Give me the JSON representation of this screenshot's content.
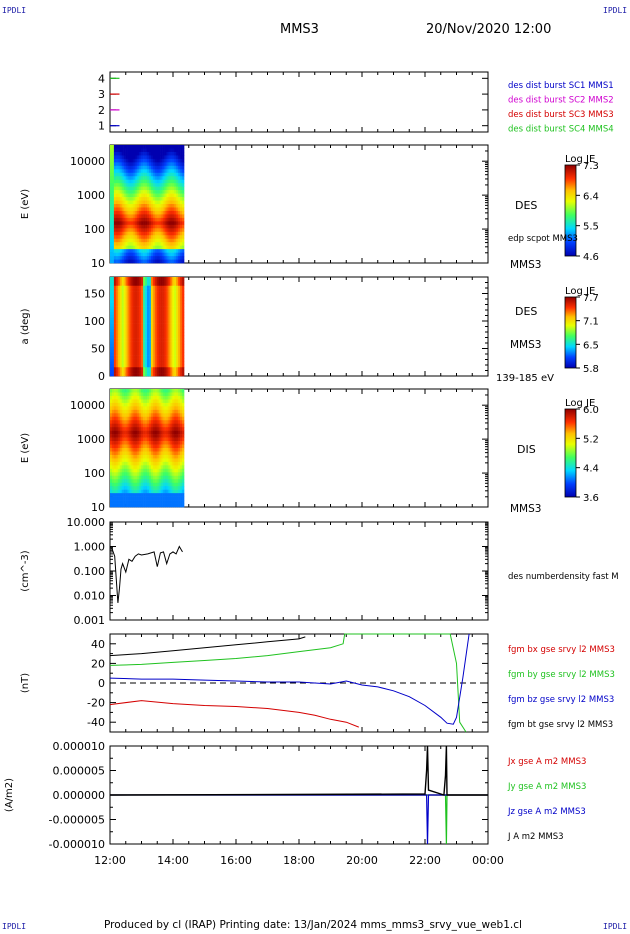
{
  "header": {
    "corner_left": "IPDLI",
    "corner_right": "IPDLI",
    "spacecraft": "MMS3",
    "datetime": "20/Nov/2020 12:00"
  },
  "footer": {
    "text": "Produced by cl (IRAP)   Printing date: 13/Jan/2024   mms_mms3_srvy_vue_web1.cl",
    "corner_left": "IPDLI",
    "corner_right": "IPDLI"
  },
  "x_axis": {
    "tick_labels": [
      "12:00",
      "14:00",
      "16:00",
      "18:00",
      "20:00",
      "22:00",
      "00:00"
    ],
    "tick_hours": [
      12,
      14,
      16,
      18,
      20,
      22,
      24
    ],
    "range_hours": [
      12,
      24
    ]
  },
  "colors": {
    "red": "#d40000",
    "green": "#1fc21f",
    "blue": "#0000c8",
    "magenta": "#d000d0",
    "black": "#000000"
  },
  "panels": {
    "burst": {
      "tick_labels": [
        "1",
        "2",
        "3",
        "4"
      ],
      "legend": [
        {
          "text": "des dist burst SC1 MMS1",
          "color": "#0000c8"
        },
        {
          "text": "des dist burst SC2 MMS2",
          "color": "#d000d0"
        },
        {
          "text": "des dist burst SC3 MMS3",
          "color": "#d40000"
        },
        {
          "text": "des dist burst SC4 MMS4",
          "color": "#1fc21f"
        }
      ]
    },
    "des_energy": {
      "ylabel": "E (eV)",
      "tick_labels": [
        "10",
        "100",
        "1000",
        "10000"
      ],
      "label": "DES",
      "sublabel": "edp scpot MMS3",
      "spacecraft": "MMS3",
      "colorbar": {
        "title": "Log JE",
        "ticks": [
          "7.3",
          "6.4",
          "5.5",
          "4.6"
        ]
      }
    },
    "des_pitch": {
      "ylabel": "a (deg)",
      "tick_labels": [
        "0",
        "50",
        "100",
        "150"
      ],
      "label": "DES",
      "spacecraft": "MMS3",
      "energy_range": "139-185 eV",
      "colorbar": {
        "title": "Log JE",
        "ticks": [
          "7.7",
          "7.1",
          "6.5",
          "5.8"
        ]
      }
    },
    "dis_energy": {
      "ylabel": "E (eV)",
      "tick_labels": [
        "10",
        "100",
        "1000",
        "10000"
      ],
      "label": "DIS",
      "spacecraft": "MMS3",
      "colorbar": {
        "title": "Log JE",
        "ticks": [
          "6.0",
          "5.2",
          "4.4",
          "3.6"
        ]
      }
    },
    "density": {
      "ylabel": "(cm^-3)",
      "tick_labels": [
        "0.001",
        "0.010",
        "0.100",
        "1.000",
        "10.000"
      ],
      "legend": [
        {
          "text": "des numberdensity fast M",
          "color": "#000000"
        }
      ]
    },
    "bfield": {
      "ylabel": "(nT)",
      "tick_labels": [
        "-40",
        "-20",
        "0",
        "20",
        "40"
      ],
      "legend": [
        {
          "text": "fgm bx gse srvy l2 MMS3",
          "color": "#d40000"
        },
        {
          "text": "fgm by gse srvy l2 MMS3",
          "color": "#1fc21f"
        },
        {
          "text": "fgm bz gse srvy l2 MMS3",
          "color": "#0000c8"
        },
        {
          "text": "fgm bt gse srvy l2 MMS3",
          "color": "#000000"
        }
      ]
    },
    "current": {
      "ylabel": "(A/m2)",
      "tick_labels": [
        "-0.000010",
        "-0.000005",
        "0.000000",
        "0.000005",
        "0.000010"
      ],
      "legend": [
        {
          "text": "Jx gse A m2 MMS3",
          "color": "#d40000"
        },
        {
          "text": "Jy gse A m2 MMS3",
          "color": "#1fc21f"
        },
        {
          "text": "Jz gse A m2 MMS3",
          "color": "#0000c8"
        },
        {
          "text": "J A m2 MMS3",
          "color": "#000000"
        }
      ]
    }
  },
  "chart_data": [
    {
      "type": "scatter",
      "title": "burst availability",
      "series": [
        {
          "name": "des dist burst SC1 MMS1",
          "x": [
            12.0,
            12.3
          ],
          "y": [
            1,
            1
          ]
        },
        {
          "name": "des dist burst SC2 MMS2",
          "x": [
            12.0,
            12.3
          ],
          "y": [
            2,
            2
          ]
        },
        {
          "name": "des dist burst SC3 MMS3",
          "x": [
            12.0,
            12.3
          ],
          "y": [
            3,
            3
          ]
        },
        {
          "name": "des dist burst SC4 MMS4",
          "x": [
            12.0,
            12.3
          ],
          "y": [
            4,
            4
          ]
        }
      ],
      "xlim": [
        12,
        24
      ],
      "ylim": [
        0.6,
        4.4
      ]
    },
    {
      "type": "heatmap",
      "ylabel": "E (eV)",
      "yscale": "log",
      "xlim": [
        12,
        24
      ],
      "ylim": [
        10,
        30000
      ],
      "data_x_range": [
        12.0,
        14.35
      ],
      "peak_energy_ev": 150,
      "zlim": [
        4.6,
        7.3
      ]
    },
    {
      "type": "heatmap",
      "ylabel": "a (deg)",
      "xlim": [
        12,
        24
      ],
      "ylim": [
        0,
        180
      ],
      "data_x_range": [
        12.0,
        14.35
      ],
      "energy_range": "139-185 eV",
      "zlim": [
        5.8,
        7.7
      ]
    },
    {
      "type": "heatmap",
      "ylabel": "E (eV)",
      "yscale": "log",
      "xlim": [
        12,
        24
      ],
      "ylim": [
        10,
        30000
      ],
      "data_x_range": [
        12.0,
        14.35
      ],
      "peak_energy_ev": 1500,
      "zlim": [
        3.6,
        6.0
      ]
    },
    {
      "type": "line",
      "ylabel": "(cm^-3)",
      "yscale": "log",
      "xlim": [
        12,
        24
      ],
      "ylim": [
        0.001,
        10
      ],
      "series": [
        {
          "name": "des numberdensity fast M",
          "x": [
            12.05,
            12.15,
            12.25,
            12.3,
            12.35,
            12.4,
            12.5,
            12.6,
            12.7,
            12.8,
            12.9,
            13.0,
            13.2,
            13.4,
            13.5,
            13.6,
            13.7,
            13.8,
            13.9,
            14.0,
            14.1,
            14.2,
            14.3
          ],
          "y": [
            0.9,
            0.4,
            0.005,
            0.02,
            0.12,
            0.2,
            0.09,
            0.3,
            0.25,
            0.4,
            0.5,
            0.45,
            0.5,
            0.6,
            0.15,
            0.55,
            0.6,
            0.2,
            0.5,
            0.6,
            0.5,
            1.0,
            0.6
          ]
        }
      ]
    },
    {
      "type": "line",
      "ylabel": "(nT)",
      "xlim": [
        12,
        24
      ],
      "ylim": [
        -50,
        50
      ],
      "series": [
        {
          "name": "fgm bx gse srvy l2 MMS3",
          "x": [
            12.0,
            13.0,
            14.0,
            15.0,
            16.0,
            17.0,
            18.0,
            18.5,
            19.0,
            19.5,
            19.9
          ],
          "y": [
            -22,
            -18,
            -21,
            -23,
            -24,
            -26,
            -30,
            -33,
            -37,
            -40,
            -45
          ]
        },
        {
          "name": "fgm by gse srvy l2 MMS3",
          "x": [
            12.0,
            13.0,
            14.0,
            15.0,
            16.0,
            17.0,
            18.0,
            19.0,
            19.4,
            19.45,
            22.8,
            23.0,
            23.1,
            23.3
          ],
          "y": [
            18,
            19,
            21,
            23,
            25,
            28,
            32,
            36,
            40,
            50,
            50,
            20,
            -40,
            -50
          ]
        },
        {
          "name": "fgm bz gse srvy l2 MMS3",
          "x": [
            12.0,
            13.0,
            14.0,
            15.0,
            16.0,
            17.0,
            18.0,
            19.0,
            19.5,
            20.0,
            20.5,
            21.0,
            21.5,
            22.0,
            22.5,
            22.7,
            22.9,
            23.0,
            23.2,
            23.4
          ],
          "y": [
            5,
            4,
            4,
            3,
            2,
            1,
            1,
            -1,
            2,
            -2,
            -4,
            -8,
            -14,
            -23,
            -35,
            -41,
            -42,
            -35,
            5,
            50
          ]
        },
        {
          "name": "fgm bt gse srvy l2 MMS3",
          "x": [
            12.0,
            13.0,
            14.0,
            15.0,
            16.0,
            17.0,
            18.0,
            18.2
          ],
          "y": [
            28,
            30,
            33,
            36,
            39,
            42,
            45,
            47
          ]
        }
      ]
    },
    {
      "type": "line",
      "ylabel": "(A/m2)",
      "xlim": [
        12,
        24
      ],
      "ylim": [
        -1e-05,
        1e-05
      ],
      "series": [
        {
          "name": "Jx gse A m2 MMS3",
          "x": [
            12.0,
            24.0
          ],
          "y": [
            0.0,
            0.0
          ]
        },
        {
          "name": "Jy gse A m2 MMS3",
          "x": [
            12.0,
            22.65,
            22.68,
            22.7,
            24.0
          ],
          "y": [
            0.0,
            0.0,
            -1e-05,
            0.0,
            0.0
          ]
        },
        {
          "name": "Jz gse A m2 MMS3",
          "x": [
            12.0,
            22.05,
            22.08,
            22.11,
            24.0
          ],
          "y": [
            0.0,
            0.0,
            -1e-05,
            0.0,
            0.0
          ]
        },
        {
          "name": "J A m2 MMS3",
          "x": [
            12.0,
            22.0,
            22.05,
            22.08,
            22.11,
            22.6,
            22.65,
            22.68,
            22.7,
            24.0
          ],
          "y": [
            0.0,
            2e-07,
            5e-06,
            1e-05,
            1e-06,
            0.0,
            4e-06,
            1e-05,
            0.0,
            0.0
          ]
        }
      ]
    }
  ]
}
